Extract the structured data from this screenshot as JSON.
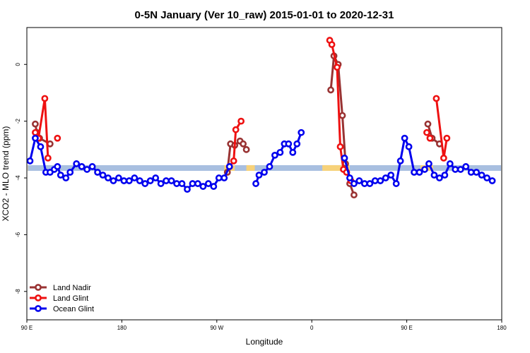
{
  "chart_data": {
    "type": "line",
    "title": "0-5N January (Ver 10_raw)   2015-01-01 to 2020-12-31",
    "xlabel": "Longitude",
    "ylabel": "XCO2 - MLO trend (ppm)",
    "x_ticks": [
      {
        "pos": 90,
        "label": "90 E"
      },
      {
        "pos": 180,
        "label": "180"
      },
      {
        "pos": 270,
        "label": "90 W"
      },
      {
        "pos": 360,
        "label": "0"
      },
      {
        "pos": 450,
        "label": "90 E"
      },
      {
        "pos": 540,
        "label": "180"
      }
    ],
    "y_ticks": [
      0,
      -2,
      -4,
      -6,
      -8
    ],
    "xlim": [
      90,
      540
    ],
    "ylim": [
      -9,
      1.3
    ],
    "legend_position": "bottom-left",
    "band": {
      "y_range": [
        -3.75,
        -3.55
      ],
      "land_color": "#f7d27a",
      "ocean_color": "#a8bfe0",
      "land_segments": [
        [
          86,
          91
        ],
        [
          277,
          287
        ],
        [
          298,
          306
        ],
        [
          370,
          396
        ],
        [
          463,
          475
        ]
      ]
    },
    "series": [
      {
        "name": "Land Nadir",
        "color": "#993333",
        "segments": [
          [
            [
              98,
              -2.1
            ],
            [
              99.5,
              -2.4
            ],
            [
              102,
              -2.6
            ],
            [
              112,
              -2.8
            ]
          ],
          [
            [
              280,
              -3.8
            ],
            [
              283,
              -2.8
            ],
            [
              287,
              -2.85
            ],
            [
              292,
              -2.7
            ],
            [
              295,
              -2.8
            ],
            [
              298,
              -3.0
            ]
          ],
          [
            [
              378,
              -0.9
            ],
            [
              381,
              0.3
            ],
            [
              385,
              0.0
            ],
            [
              389,
              -1.8
            ],
            [
              392,
              -3.5
            ],
            [
              396,
              -4.2
            ],
            [
              400,
              -4.6
            ]
          ],
          [
            [
              470,
              -2.1
            ],
            [
              474,
              -2.6
            ],
            [
              481,
              -2.8
            ]
          ]
        ]
      },
      {
        "name": "Land Glint",
        "color": "#ee1111",
        "segments": [
          [
            [
              98,
              -2.4
            ],
            [
              101,
              -2.6
            ],
            [
              107,
              -1.2
            ],
            [
              110,
              -3.3
            ]
          ],
          [
            [
              119,
              -2.6
            ]
          ],
          [
            [
              282,
              -3.6
            ],
            [
              286,
              -3.4
            ],
            [
              288,
              -2.3
            ],
            [
              293,
              -2.0
            ]
          ],
          [
            [
              377,
              0.85
            ],
            [
              379,
              0.7
            ],
            [
              384,
              -0.1
            ],
            [
              387,
              -2.9
            ],
            [
              390,
              -3.7
            ],
            [
              393,
              -3.8
            ],
            [
              397,
              -4.1
            ]
          ],
          [
            [
              478,
              -1.2
            ],
            [
              485,
              -3.3
            ],
            [
              488,
              -2.6
            ]
          ],
          [
            [
              469,
              -2.4
            ],
            [
              472,
              -2.6
            ]
          ]
        ]
      },
      {
        "name": "Ocean Glint",
        "color": "#0000ee",
        "segments": [
          [
            [
              93,
              -3.4
            ],
            [
              98,
              -2.6
            ],
            [
              103,
              -2.9
            ],
            [
              108,
              -3.8
            ],
            [
              112,
              -3.8
            ],
            [
              116,
              -3.7
            ],
            [
              119,
              -3.6
            ],
            [
              122,
              -3.9
            ],
            [
              127,
              -4.0
            ],
            [
              131,
              -3.8
            ],
            [
              137,
              -3.5
            ],
            [
              142,
              -3.6
            ],
            [
              147,
              -3.7
            ],
            [
              152,
              -3.6
            ],
            [
              157,
              -3.8
            ],
            [
              162,
              -3.9
            ],
            [
              167,
              -4.0
            ],
            [
              172,
              -4.1
            ],
            [
              177,
              -4.0
            ],
            [
              182,
              -4.1
            ],
            [
              187,
              -4.1
            ],
            [
              192,
              -4.0
            ],
            [
              197,
              -4.1
            ],
            [
              202,
              -4.2
            ],
            [
              207,
              -4.1
            ],
            [
              212,
              -4.0
            ],
            [
              217,
              -4.2
            ],
            [
              222,
              -4.1
            ],
            [
              227,
              -4.1
            ],
            [
              232,
              -4.2
            ],
            [
              237,
              -4.2
            ],
            [
              242,
              -4.4
            ],
            [
              247,
              -4.2
            ],
            [
              252,
              -4.2
            ],
            [
              257,
              -4.3
            ],
            [
              262,
              -4.2
            ],
            [
              267,
              -4.3
            ],
            [
              272,
              -4.0
            ],
            [
              277,
              -4.0
            ],
            [
              282,
              -3.6
            ]
          ],
          [
            [
              307,
              -4.2
            ],
            [
              310,
              -3.9
            ],
            [
              315,
              -3.8
            ],
            [
              320,
              -3.6
            ],
            [
              325,
              -3.2
            ],
            [
              330,
              -3.1
            ],
            [
              334,
              -2.8
            ],
            [
              338,
              -2.8
            ],
            [
              342,
              -3.1
            ],
            [
              346,
              -2.8
            ],
            [
              350,
              -2.4
            ]
          ],
          [
            [
              391,
              -3.3
            ],
            [
              396,
              -4.0
            ],
            [
              400,
              -4.2
            ],
            [
              405,
              -4.1
            ],
            [
              410,
              -4.2
            ],
            [
              415,
              -4.2
            ],
            [
              420,
              -4.1
            ],
            [
              425,
              -4.1
            ],
            [
              430,
              -4.0
            ],
            [
              435,
              -3.9
            ],
            [
              440,
              -4.2
            ],
            [
              444,
              -3.4
            ],
            [
              448,
              -2.6
            ],
            [
              452,
              -2.9
            ],
            [
              457,
              -3.8
            ],
            [
              462,
              -3.8
            ],
            [
              467,
              -3.7
            ],
            [
              471,
              -3.5
            ],
            [
              476,
              -3.9
            ],
            [
              481,
              -4.0
            ],
            [
              486,
              -3.9
            ],
            [
              491,
              -3.5
            ],
            [
              496,
              -3.7
            ],
            [
              501,
              -3.7
            ],
            [
              506,
              -3.6
            ],
            [
              511,
              -3.8
            ],
            [
              516,
              -3.8
            ],
            [
              521,
              -3.9
            ],
            [
              526,
              -4.0
            ],
            [
              531,
              -4.1
            ]
          ]
        ]
      }
    ]
  }
}
